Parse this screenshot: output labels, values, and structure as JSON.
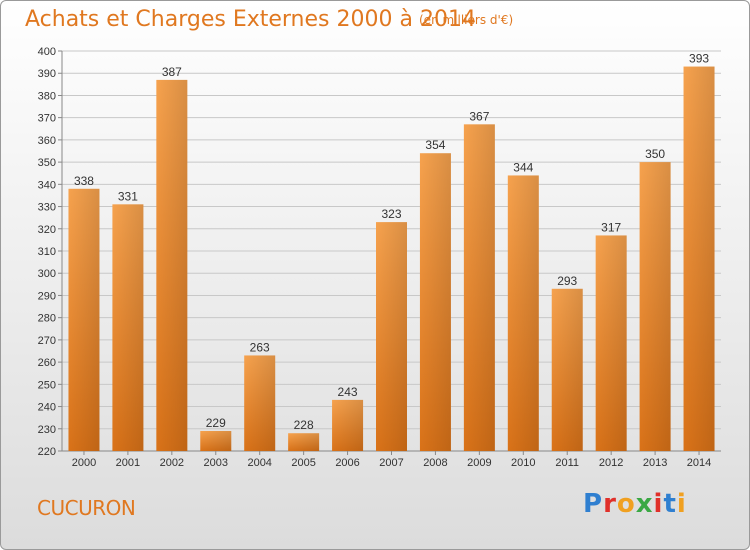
{
  "title": "Achats et Charges Externes 2000 à 2014",
  "subtitle": "(en milliers d'€)",
  "commune": "CUCURON",
  "logo": {
    "text": "Proxiti",
    "colors": [
      "#2f7fd0",
      "#e0302a",
      "#f0a020",
      "#3aa844",
      "#e0302a",
      "#2f7fd0",
      "#f0a020"
    ]
  },
  "colors": {
    "accent": "#e07820",
    "bar_top": "#f6a24e",
    "bar_bottom": "#d97218",
    "grid": "#c8c8c8"
  },
  "chart_data": {
    "type": "bar",
    "categories": [
      "2000",
      "2001",
      "2002",
      "2003",
      "2004",
      "2005",
      "2006",
      "2007",
      "2008",
      "2009",
      "2010",
      "2011",
      "2012",
      "2013",
      "2014"
    ],
    "values": [
      338,
      331,
      387,
      229,
      263,
      228,
      243,
      323,
      354,
      367,
      344,
      293,
      317,
      350,
      393
    ],
    "title": "Achats et Charges Externes 2000 à 2014",
    "xlabel": "",
    "ylabel": "",
    "ylim": [
      220,
      400
    ],
    "yticks": [
      220,
      230,
      240,
      250,
      260,
      270,
      280,
      290,
      300,
      310,
      320,
      330,
      340,
      350,
      360,
      370,
      380,
      390,
      400
    ],
    "grid": true,
    "data_labels": true
  }
}
